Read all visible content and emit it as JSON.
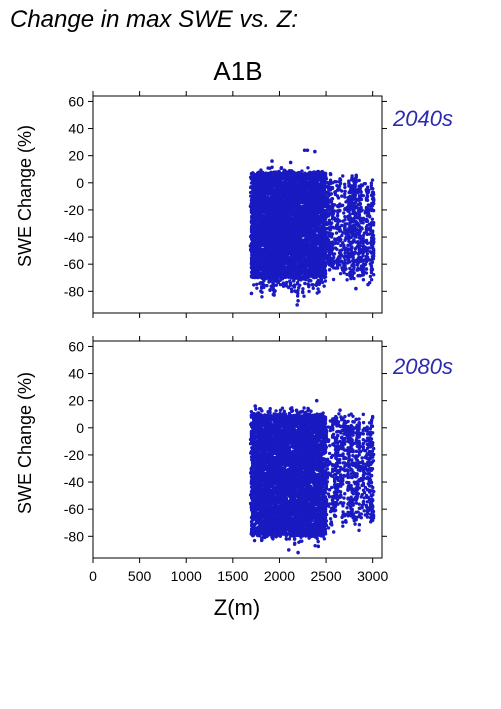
{
  "figure": {
    "heading": "Change in max SWE vs. Z:",
    "scenario": "A1B",
    "xlabel": "Z(m)"
  },
  "colors": {
    "points": "#1a1ac2",
    "period_label": "#2b2bb0",
    "axis": "#000000"
  },
  "chart_data": [
    {
      "type": "scatter",
      "panel_label": "2040s",
      "ylabel": "SWE Change (%)",
      "xlim": [
        0,
        3100
      ],
      "ylim": [
        -96,
        64
      ],
      "x_ticks": [
        0,
        500,
        1000,
        1500,
        2000,
        2500,
        3000
      ],
      "y_ticks": [
        -80,
        -60,
        -40,
        -20,
        0,
        20,
        40,
        60
      ],
      "x_tick_labels_shown": false,
      "grid": false,
      "cloud": {
        "x_range": [
          1690,
          3010
        ],
        "dense_x_range": [
          1700,
          2500
        ],
        "y_max_approx": 12,
        "y_min_approx": -90,
        "dense_y_range": [
          -70,
          8
        ]
      },
      "outliers": [
        {
          "x": 2270,
          "y": 24
        },
        {
          "x": 2300,
          "y": 24
        },
        {
          "x": 2380,
          "y": 23
        },
        {
          "x": 1920,
          "y": 16
        },
        {
          "x": 2120,
          "y": 15
        },
        {
          "x": 2190,
          "y": -90
        },
        {
          "x": 2200,
          "y": -87
        },
        {
          "x": 2820,
          "y": -78
        },
        {
          "x": 2950,
          "y": -75
        }
      ]
    },
    {
      "type": "scatter",
      "panel_label": "2080s",
      "ylabel": "SWE Change (%)",
      "xlim": [
        0,
        3100
      ],
      "ylim": [
        -96,
        64
      ],
      "x_ticks": [
        0,
        500,
        1000,
        1500,
        2000,
        2500,
        3000
      ],
      "y_ticks": [
        -80,
        -60,
        -40,
        -20,
        0,
        20,
        40,
        60
      ],
      "x_tick_labels_shown": true,
      "grid": false,
      "cloud": {
        "x_range": [
          1690,
          3010
        ],
        "dense_x_range": [
          1700,
          2500
        ],
        "y_max_approx": 16,
        "y_min_approx": -92,
        "dense_y_range": [
          -80,
          10
        ]
      },
      "outliers": [
        {
          "x": 2400,
          "y": 20
        },
        {
          "x": 1740,
          "y": 16
        },
        {
          "x": 2650,
          "y": 13
        },
        {
          "x": 2200,
          "y": -92
        },
        {
          "x": 2100,
          "y": -90
        }
      ]
    }
  ]
}
